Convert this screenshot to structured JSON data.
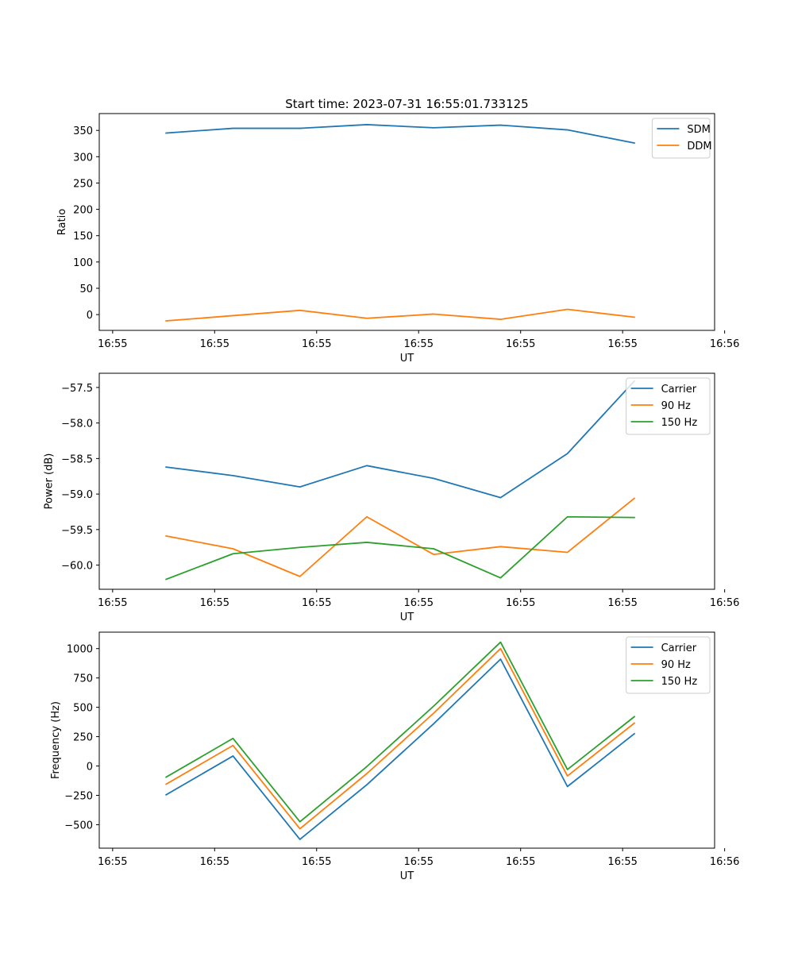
{
  "figure_title": "Start time: 2023-07-31 16:55:01.733125",
  "colors": {
    "c0": "#1f77b4",
    "c1": "#ff7f0e",
    "c2": "#2ca02c"
  },
  "chart_data": [
    {
      "type": "line",
      "xlabel": "UT",
      "ylabel": "Ratio",
      "xlim": [
        0,
        9.2
      ],
      "ylim": [
        -30,
        382
      ],
      "x": [
        1,
        2,
        3,
        4,
        5,
        6,
        7,
        8
      ],
      "xticks": [
        0.2,
        1.725,
        3.25,
        4.775,
        6.3,
        7.825,
        9.35
      ],
      "xtick_labels": [
        "16:55",
        "16:55",
        "16:55",
        "16:55",
        "16:55",
        "16:55",
        "16:56"
      ],
      "yticks": [
        0,
        50,
        100,
        150,
        200,
        250,
        300,
        350
      ],
      "ytick_labels": [
        "0",
        "50",
        "100",
        "150",
        "200",
        "250",
        "300",
        "350"
      ],
      "legend_position": "top-right",
      "series": [
        {
          "name": "SDM",
          "color": "#1f77b4",
          "values": [
            345,
            354,
            354,
            361,
            355,
            360,
            351,
            326
          ]
        },
        {
          "name": "DDM",
          "color": "#ff7f0e",
          "values": [
            -12,
            -2,
            8,
            -7,
            1,
            -9,
            10,
            -5
          ]
        }
      ]
    },
    {
      "type": "line",
      "xlabel": "UT",
      "ylabel": "Power (dB)",
      "xlim": [
        0,
        9.2
      ],
      "ylim": [
        -60.34,
        -57.3
      ],
      "x": [
        1,
        2,
        3,
        4,
        5,
        6,
        7,
        8
      ],
      "xticks": [
        0.2,
        1.725,
        3.25,
        4.775,
        6.3,
        7.825,
        9.35
      ],
      "xtick_labels": [
        "16:55",
        "16:55",
        "16:55",
        "16:55",
        "16:55",
        "16:55",
        "16:56"
      ],
      "yticks": [
        -57.5,
        -58.0,
        -58.5,
        -59.0,
        -59.5,
        -60.0
      ],
      "ytick_labels": [
        "−57.5",
        "−58.0",
        "−58.5",
        "−59.0",
        "−59.5",
        "−60.0"
      ],
      "legend_position": "top-right",
      "series": [
        {
          "name": "Carrier",
          "color": "#1f77b4",
          "values": [
            -58.62,
            -58.74,
            -58.9,
            -58.6,
            -58.78,
            -59.05,
            -58.43,
            -57.41
          ]
        },
        {
          "name": "90 Hz",
          "color": "#ff7f0e",
          "values": [
            -59.59,
            -59.77,
            -60.16,
            -59.32,
            -59.85,
            -59.74,
            -59.82,
            -59.06
          ]
        },
        {
          "name": "150 Hz",
          "color": "#2ca02c",
          "values": [
            -60.2,
            -59.84,
            -59.75,
            -59.68,
            -59.77,
            -60.18,
            -59.32,
            -59.33
          ]
        }
      ]
    },
    {
      "type": "line",
      "xlabel": "UT",
      "ylabel": "Frequency (Hz)",
      "xlim": [
        0,
        9.2
      ],
      "ylim": [
        -700,
        1140
      ],
      "x": [
        1,
        2,
        3,
        4,
        5,
        6,
        7,
        8
      ],
      "xticks": [
        0.2,
        1.725,
        3.25,
        4.775,
        6.3,
        7.825,
        9.35
      ],
      "xtick_labels": [
        "16:55",
        "16:55",
        "16:55",
        "16:55",
        "16:55",
        "16:55",
        "16:56"
      ],
      "yticks": [
        1000,
        750,
        500,
        250,
        0,
        -250,
        -500
      ],
      "ytick_labels": [
        "1000",
        "750",
        "500",
        "250",
        "0",
        "−250",
        "−500"
      ],
      "legend_position": "top-right",
      "series": [
        {
          "name": "Carrier",
          "color": "#1f77b4",
          "values": [
            -245,
            85,
            -625,
            -160,
            360,
            910,
            -175,
            275
          ]
        },
        {
          "name": "90 Hz",
          "color": "#ff7f0e",
          "values": [
            -155,
            175,
            -535,
            -65,
            450,
            1000,
            -85,
            365
          ]
        },
        {
          "name": "150 Hz",
          "color": "#2ca02c",
          "values": [
            -95,
            235,
            -475,
            -5,
            510,
            1055,
            -30,
            420
          ]
        }
      ]
    }
  ]
}
